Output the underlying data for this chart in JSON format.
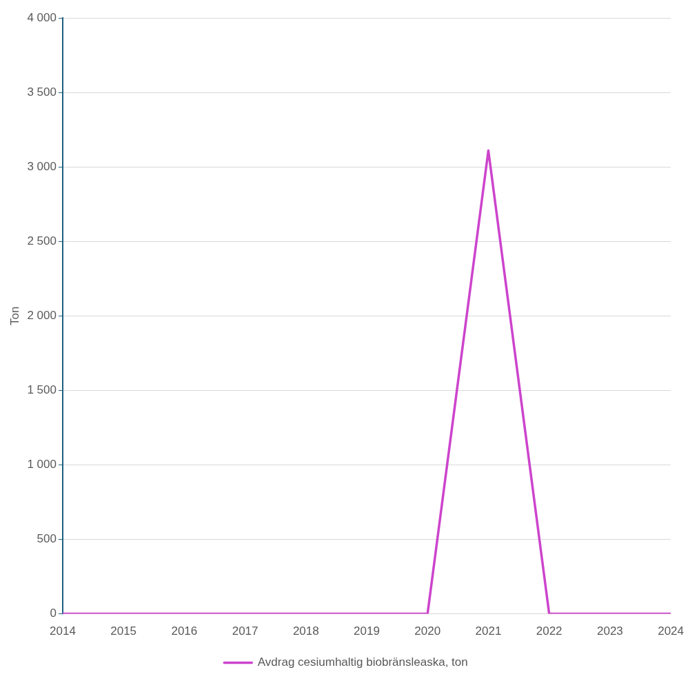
{
  "chart_data": {
    "type": "line",
    "ylabel": "Ton",
    "categories": [
      "2014",
      "2015",
      "2016",
      "2017",
      "2018",
      "2019",
      "2020",
      "2021",
      "2022",
      "2023",
      "2024"
    ],
    "series": [
      {
        "name": "Avdrag cesiumhaltig biobränsleaska, ton",
        "color": "#cc44cc",
        "values": [
          0,
          0,
          0,
          0,
          0,
          0,
          0,
          3110,
          0,
          0,
          0
        ]
      }
    ],
    "ylim": [
      0,
      4000
    ],
    "yticks": [
      0,
      500,
      {
        "value": 1000,
        "label": "1 000"
      },
      {
        "value": 1500,
        "label": "1 500"
      },
      {
        "value": 2000,
        "label": "2 000"
      },
      {
        "value": 2500,
        "label": "2 500"
      },
      {
        "value": 3000,
        "label": "3 000"
      },
      {
        "value": 3500,
        "label": "3 500"
      },
      {
        "value": 4000,
        "label": "4 000"
      }
    ],
    "grid": "y",
    "legend": "bottom",
    "marker": "none",
    "line_style": "solid"
  }
}
